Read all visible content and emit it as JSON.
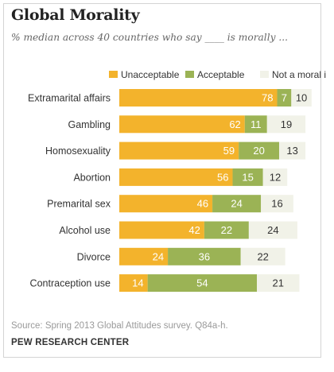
{
  "title": "Global Morality",
  "subtitle": "% median across 40 countries who say ____ is morally ...",
  "source": "Source: Spring 2013 Global Attitudes survey. Q84a-h.",
  "organization": "PEW RESEARCH CENTER",
  "colors": {
    "unacceptable": "#f3b32c",
    "acceptable": "#9bb355",
    "not_moral": "#f1f2e8"
  },
  "chart_data": {
    "type": "bar",
    "orientation": "horizontal",
    "stacked": true,
    "legend_position": "top",
    "categories": [
      "Extramarital affairs",
      "Gambling",
      "Homosexuality",
      "Abortion",
      "Premarital sex",
      "Alcohol use",
      "Divorce",
      "Contraception use"
    ],
    "series": [
      {
        "name": "Unacceptable",
        "values": [
          78,
          62,
          59,
          56,
          46,
          42,
          24,
          14
        ]
      },
      {
        "name": "Acceptable",
        "values": [
          7,
          11,
          20,
          15,
          24,
          22,
          36,
          54
        ]
      },
      {
        "name": "Not a moral issue",
        "values": [
          10,
          19,
          13,
          12,
          16,
          24,
          22,
          21
        ]
      }
    ]
  }
}
